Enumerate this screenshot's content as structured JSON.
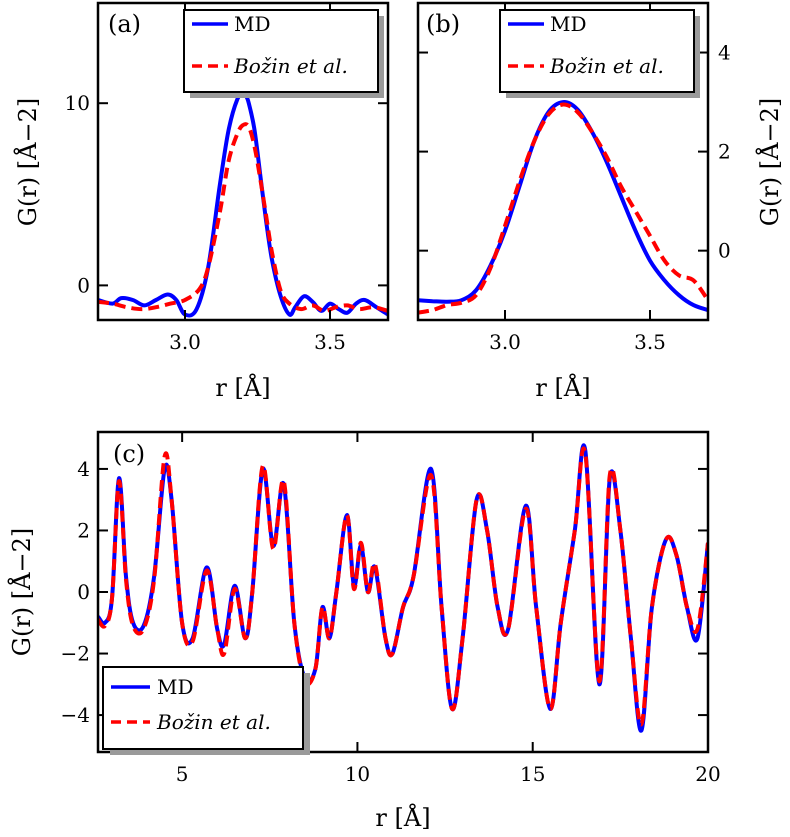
{
  "chart_data": [
    {
      "type": "line",
      "panel_label": "(a)",
      "xlabel": "r [Å]",
      "ylabel": "G(r) [Å−2]",
      "xlim": [
        2.7,
        3.7
      ],
      "ylim": [
        -1.9,
        15.5
      ],
      "xticks": [
        3.0,
        3.5
      ],
      "xtick_labels": [
        "3.0",
        "3.5"
      ],
      "yticks": [
        0,
        10
      ],
      "ytick_labels": [
        "0",
        "10"
      ],
      "legend_position": "top-right",
      "series": [
        {
          "name": "MD",
          "style": "solid",
          "color": "#0000ff",
          "x": [
            2.7,
            2.75,
            2.78,
            2.82,
            2.86,
            2.9,
            2.94,
            2.97,
            3.0,
            3.04,
            3.08,
            3.12,
            3.15,
            3.18,
            3.2,
            3.21,
            3.22,
            3.24,
            3.26,
            3.28,
            3.3,
            3.33,
            3.36,
            3.38,
            3.41,
            3.44,
            3.47,
            3.5,
            3.53,
            3.56,
            3.59,
            3.62,
            3.66,
            3.7
          ],
          "y": [
            -0.8,
            -1.0,
            -0.7,
            -0.8,
            -1.1,
            -0.8,
            -0.5,
            -0.8,
            -1.6,
            -1.3,
            1.0,
            5.5,
            8.5,
            10.2,
            10.5,
            10.4,
            10.0,
            8.5,
            6.0,
            3.5,
            1.4,
            -0.6,
            -1.6,
            -1.2,
            -0.6,
            -0.9,
            -1.4,
            -1.0,
            -1.3,
            -1.5,
            -1.0,
            -0.8,
            -1.2,
            -1.6
          ]
        },
        {
          "name": "Božin et al.",
          "style": "dashed",
          "color": "#ff0000",
          "x": [
            2.7,
            2.75,
            2.8,
            2.85,
            2.9,
            2.95,
            3.0,
            3.05,
            3.08,
            3.12,
            3.15,
            3.18,
            3.2,
            3.22,
            3.24,
            3.26,
            3.28,
            3.3,
            3.33,
            3.36,
            3.4,
            3.44,
            3.48,
            3.52,
            3.56,
            3.6,
            3.65,
            3.7
          ],
          "y": [
            -0.9,
            -1.0,
            -1.2,
            -1.3,
            -1.2,
            -1.0,
            -0.8,
            -0.2,
            1.0,
            4.0,
            6.8,
            8.3,
            8.8,
            8.7,
            7.6,
            5.8,
            3.8,
            1.8,
            -0.3,
            -1.0,
            -1.3,
            -1.1,
            -1.4,
            -1.2,
            -1.1,
            -1.3,
            -1.2,
            -1.4
          ]
        }
      ]
    },
    {
      "type": "line",
      "panel_label": "(b)",
      "xlabel": "r [Å]",
      "ylabel": "G(r) [Å−2]",
      "xlim": [
        2.7,
        3.7
      ],
      "ylim": [
        -1.4,
        5.0
      ],
      "xticks": [
        3.0,
        3.5
      ],
      "xtick_labels": [
        "3.0",
        "3.5"
      ],
      "yticks": [
        0,
        2,
        4
      ],
      "ytick_labels": [
        "0",
        "2",
        "4"
      ],
      "legend_position": "top-right",
      "series": [
        {
          "name": "MD",
          "style": "solid",
          "color": "#0000ff",
          "x": [
            2.7,
            2.75,
            2.8,
            2.85,
            2.9,
            2.95,
            3.0,
            3.05,
            3.1,
            3.15,
            3.2,
            3.25,
            3.3,
            3.35,
            3.4,
            3.45,
            3.5,
            3.55,
            3.6,
            3.65,
            3.7
          ],
          "y": [
            -1.0,
            -1.02,
            -1.03,
            -1.0,
            -0.8,
            -0.3,
            0.4,
            1.3,
            2.2,
            2.8,
            3.0,
            2.85,
            2.4,
            1.8,
            1.1,
            0.4,
            -0.2,
            -0.6,
            -0.9,
            -1.1,
            -1.2
          ]
        },
        {
          "name": "Božin et al.",
          "style": "dashed",
          "color": "#ff0000",
          "x": [
            2.7,
            2.75,
            2.8,
            2.85,
            2.9,
            2.95,
            3.0,
            3.05,
            3.1,
            3.15,
            3.2,
            3.25,
            3.3,
            3.35,
            3.4,
            3.45,
            3.5,
            3.55,
            3.6,
            3.65,
            3.7
          ],
          "y": [
            -1.25,
            -1.2,
            -1.1,
            -1.05,
            -0.9,
            -0.35,
            0.5,
            1.4,
            2.2,
            2.75,
            2.95,
            2.8,
            2.4,
            1.9,
            1.3,
            0.8,
            0.3,
            -0.2,
            -0.5,
            -0.6,
            -1.0
          ]
        }
      ]
    },
    {
      "type": "line",
      "panel_label": "(c)",
      "xlabel": "r [Å]",
      "ylabel": "G(r) [Å−2]",
      "xlim": [
        2.6,
        20
      ],
      "ylim": [
        -5.2,
        5.2
      ],
      "xticks": [
        5,
        10,
        15,
        20
      ],
      "xtick_labels": [
        "5",
        "10",
        "15",
        "20"
      ],
      "yticks": [
        -4,
        -2,
        0,
        2,
        4
      ],
      "ytick_labels": [
        "−4",
        "−2",
        "0",
        "2",
        "4"
      ],
      "legend_position": "bottom-left",
      "series": [
        {
          "name": "MD",
          "style": "solid",
          "color": "#0000ff",
          "x": [
            2.6,
            2.8,
            3.0,
            3.2,
            3.4,
            3.6,
            3.9,
            4.2,
            4.5,
            4.7,
            5.0,
            5.3,
            5.7,
            6.0,
            6.2,
            6.5,
            6.8,
            7.0,
            7.3,
            7.6,
            7.9,
            8.2,
            8.5,
            8.8,
            9.0,
            9.2,
            9.4,
            9.7,
            9.9,
            10.1,
            10.3,
            10.5,
            10.8,
            11.0,
            11.3,
            11.6,
            12.1,
            12.4,
            12.7,
            13.0,
            13.4,
            13.7,
            14.0,
            14.3,
            14.8,
            15.1,
            15.5,
            15.8,
            16.2,
            16.5,
            16.9,
            17.2,
            17.5,
            17.8,
            18.1,
            18.4,
            18.8,
            19.1,
            19.4,
            19.7,
            20.0
          ],
          "y": [
            -0.8,
            -1.0,
            -0.2,
            3.7,
            0.5,
            -1.0,
            -1.1,
            0.5,
            4.0,
            3.0,
            -1.0,
            -1.5,
            0.8,
            -1.2,
            -1.7,
            0.2,
            -1.5,
            0.0,
            4.0,
            1.5,
            3.5,
            -1.0,
            -2.8,
            -2.5,
            -0.5,
            -1.5,
            0.0,
            2.5,
            0.2,
            1.5,
            0.0,
            0.8,
            -1.5,
            -2.0,
            -0.5,
            0.5,
            4.0,
            -0.5,
            -3.8,
            -1.5,
            3.0,
            2.0,
            -0.5,
            -1.2,
            2.8,
            -0.5,
            -3.8,
            -1.0,
            2.0,
            4.6,
            -3.0,
            3.7,
            2.0,
            -1.5,
            -4.5,
            -0.5,
            1.7,
            1.2,
            -0.5,
            -1.5,
            1.6
          ]
        },
        {
          "name": "Božin et al.",
          "style": "dashed",
          "color": "#ff0000",
          "x": [
            2.6,
            2.8,
            3.0,
            3.2,
            3.4,
            3.6,
            3.9,
            4.2,
            4.5,
            4.7,
            5.0,
            5.3,
            5.7,
            6.0,
            6.2,
            6.5,
            6.8,
            7.0,
            7.3,
            7.6,
            7.9,
            8.2,
            8.5,
            8.8,
            9.0,
            9.2,
            9.4,
            9.7,
            9.9,
            10.1,
            10.3,
            10.5,
            10.8,
            11.0,
            11.3,
            11.6,
            12.1,
            12.4,
            12.7,
            13.0,
            13.4,
            13.7,
            14.0,
            14.3,
            14.8,
            15.1,
            15.5,
            15.8,
            16.2,
            16.5,
            16.9,
            17.2,
            17.5,
            17.8,
            18.1,
            18.4,
            18.8,
            19.1,
            19.4,
            19.7,
            20.0
          ],
          "y": [
            -0.9,
            -1.1,
            -0.2,
            3.6,
            0.4,
            -1.1,
            -1.2,
            0.4,
            4.4,
            3.0,
            -1.0,
            -1.6,
            0.7,
            -1.2,
            -2.0,
            0.1,
            -1.5,
            0.0,
            4.1,
            1.4,
            3.6,
            -1.0,
            -2.9,
            -2.5,
            -0.5,
            -1.5,
            0.0,
            2.5,
            0.1,
            1.6,
            0.0,
            0.9,
            -1.5,
            -2.0,
            -0.5,
            0.5,
            3.8,
            -0.5,
            -3.8,
            -1.5,
            3.0,
            2.0,
            -0.5,
            -1.2,
            2.7,
            -0.5,
            -3.8,
            -1.0,
            2.0,
            4.5,
            -2.9,
            3.8,
            2.0,
            -1.5,
            -4.3,
            -0.5,
            1.7,
            1.2,
            -0.5,
            -1.2,
            1.6
          ]
        }
      ]
    }
  ]
}
